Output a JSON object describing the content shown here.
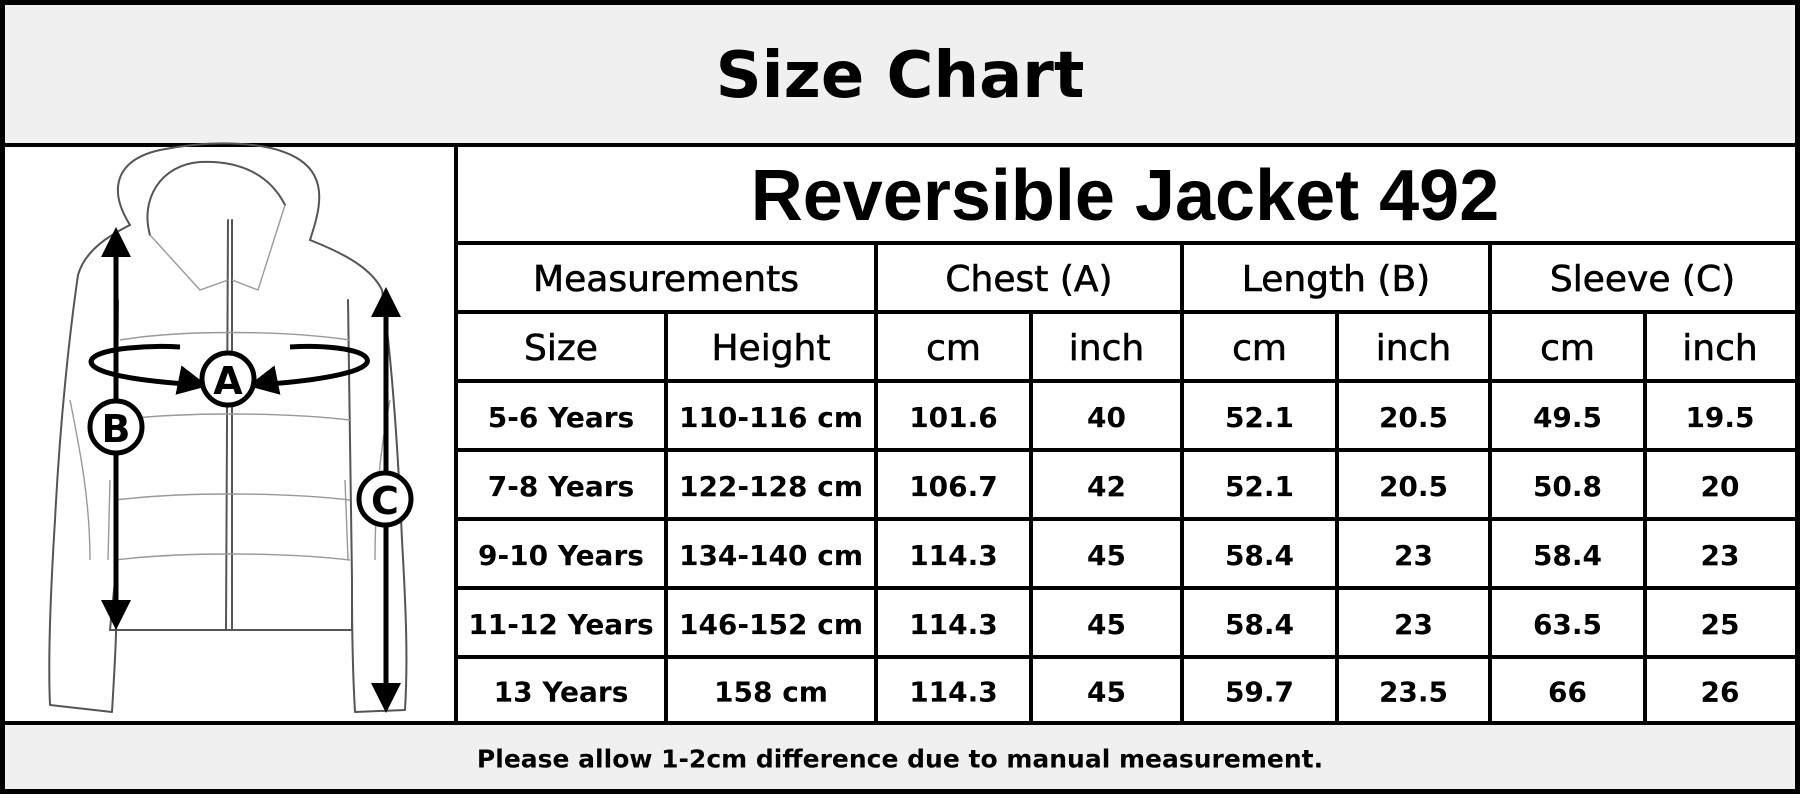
{
  "header": {
    "title": "Size Chart"
  },
  "diagram": {
    "labels": [
      "A",
      "B",
      "C"
    ]
  },
  "table": {
    "title": "Reversible Jacket 492",
    "groups": [
      "Measurements",
      "Chest (A)",
      "Length (B)",
      "Sleeve (C)"
    ],
    "columns": [
      "Size",
      "Height",
      "cm",
      "inch",
      "cm",
      "inch",
      "cm",
      "inch"
    ],
    "rows": [
      [
        "5-6 Years",
        "110-116 cm",
        "101.6",
        "40",
        "52.1",
        "20.5",
        "49.5",
        "19.5"
      ],
      [
        "7-8 Years",
        "122-128 cm",
        "106.7",
        "42",
        "52.1",
        "20.5",
        "50.8",
        "20"
      ],
      [
        "9-10 Years",
        "134-140 cm",
        "114.3",
        "45",
        "58.4",
        "23",
        "58.4",
        "23"
      ],
      [
        "11-12 Years",
        "146-152 cm",
        "114.3",
        "45",
        "58.4",
        "23",
        "63.5",
        "25"
      ],
      [
        "13 Years",
        "158 cm",
        "114.3",
        "45",
        "59.7",
        "23.5",
        "66",
        "26"
      ]
    ]
  },
  "footer": {
    "note": "Please allow 1-2cm difference due to manual measurement."
  }
}
